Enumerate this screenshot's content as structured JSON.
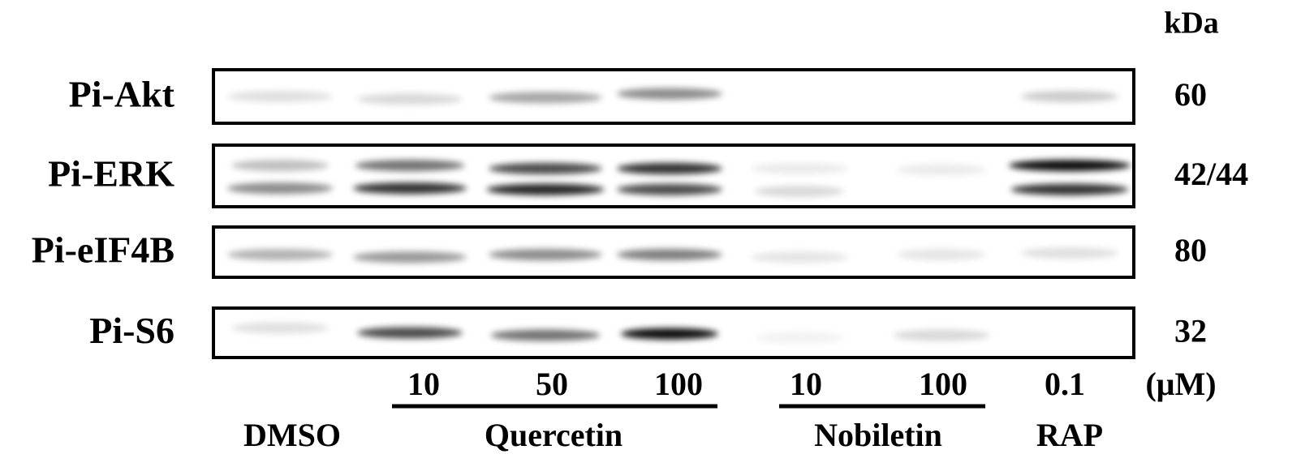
{
  "unit_header": "kDa",
  "rows": [
    {
      "label": "Pi-Akt",
      "kda": "60"
    },
    {
      "label": "Pi-ERK",
      "kda": "42/44"
    },
    {
      "label": "Pi-eIF4B",
      "kda": "80"
    },
    {
      "label": "Pi-S6",
      "kda": "32"
    }
  ],
  "doses": [
    "10",
    "50",
    "100",
    "10",
    "100",
    "0.1"
  ],
  "dose_unit": "(μM)",
  "groups": [
    "DMSO",
    "Quercetin",
    "Nobiletin",
    "RAP"
  ]
}
